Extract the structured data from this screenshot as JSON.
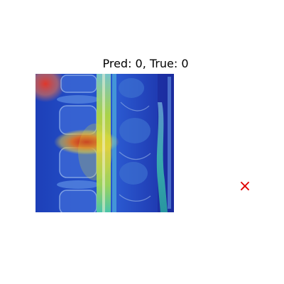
{
  "figure": {
    "title": "Pred: 0, True: 0",
    "marker_symbol": "×",
    "marker_color": "#e00000",
    "image_subject": "spine-mri-gradcam-heatmap",
    "colormap": "jet"
  }
}
